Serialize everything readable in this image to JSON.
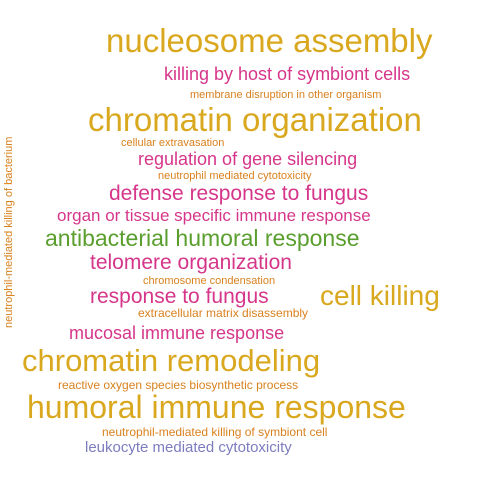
{
  "colors": {
    "gold": "#d9a81e",
    "magenta": "#d6368a",
    "orange": "#d9811e",
    "green": "#5a9e2e",
    "purple": "#7c7cbf"
  },
  "words": [
    {
      "text": "nucleosome assembly",
      "color": "gold"
    },
    {
      "text": "killing by host of symbiont cells",
      "color": "magenta"
    },
    {
      "text": "membrane disruption in other organism",
      "color": "orange"
    },
    {
      "text": "chromatin organization",
      "color": "gold"
    },
    {
      "text": "cellular extravasation",
      "color": "orange"
    },
    {
      "text": "regulation of gene silencing",
      "color": "magenta"
    },
    {
      "text": "neutrophil mediated cytotoxicity",
      "color": "orange"
    },
    {
      "text": "defense response to fungus",
      "color": "magenta"
    },
    {
      "text": "organ or tissue specific immune response",
      "color": "magenta"
    },
    {
      "text": "antibacterial humoral response",
      "color": "green"
    },
    {
      "text": "telomere organization",
      "color": "magenta"
    },
    {
      "text": "chromosome condensation",
      "color": "orange"
    },
    {
      "text": "response to fungus",
      "color": "magenta"
    },
    {
      "text": "cell killing",
      "color": "gold"
    },
    {
      "text": "extracellular matrix disassembly",
      "color": "orange"
    },
    {
      "text": "mucosal immune response",
      "color": "magenta"
    },
    {
      "text": "chromatin remodeling",
      "color": "gold"
    },
    {
      "text": "reactive oxygen species biosynthetic process",
      "color": "orange"
    },
    {
      "text": "humoral immune response",
      "color": "gold"
    },
    {
      "text": "neutrophil-mediated killing of symbiont cell",
      "color": "orange"
    },
    {
      "text": "leukocyte mediated cytotoxicity",
      "color": "purple"
    },
    {
      "text": "neutrophil-mediated killing of bacterium",
      "color": "orange"
    }
  ]
}
